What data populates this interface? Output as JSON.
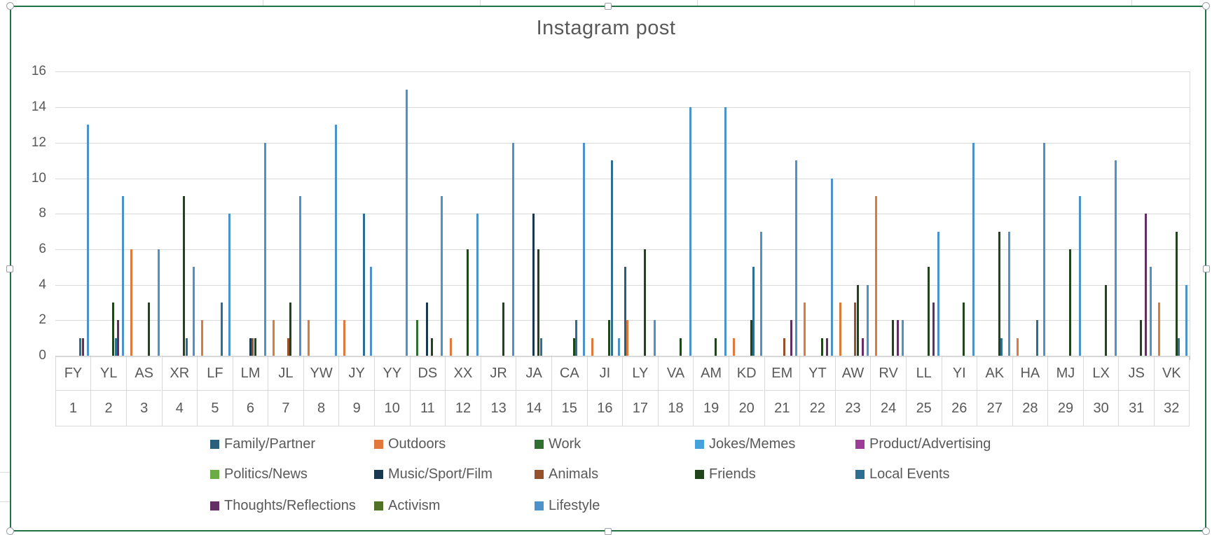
{
  "title": "Instagram post",
  "colors": {
    "frame_border": "#217346",
    "gridline": "#d9d9d9",
    "axis_text": "#595959"
  },
  "y_axis": {
    "ticks": [
      0,
      2,
      4,
      6,
      8,
      10,
      12,
      14,
      16
    ]
  },
  "x_axis": {
    "names": [
      "FY",
      "YL",
      "AS",
      "XR",
      "LF",
      "LM",
      "JL",
      "YW",
      "JY",
      "YY",
      "DS",
      "XX",
      "JR",
      "JA",
      "CA",
      "JI",
      "LY",
      "VA",
      "AM",
      "KD",
      "EM",
      "YT",
      "AW",
      "RV",
      "LL",
      "YI",
      "AK",
      "HA",
      "MJ",
      "LX",
      "JS",
      "VK"
    ],
    "numbers": [
      "1",
      "2",
      "3",
      "4",
      "5",
      "6",
      "7",
      "8",
      "9",
      "10",
      "11",
      "12",
      "13",
      "14",
      "15",
      "16",
      "17",
      "18",
      "19",
      "20",
      "21",
      "22",
      "23",
      "24",
      "25",
      "26",
      "27",
      "28",
      "29",
      "30",
      "31",
      "32"
    ]
  },
  "chart_data": {
    "type": "bar",
    "title": "Instagram post",
    "xlabel": "",
    "ylabel": "",
    "ylim": [
      0,
      16
    ],
    "grid": true,
    "legend_position": "bottom",
    "categories": [
      "FY",
      "YL",
      "AS",
      "XR",
      "LF",
      "LM",
      "JL",
      "YW",
      "JY",
      "YY",
      "DS",
      "XX",
      "JR",
      "JA",
      "CA",
      "JI",
      "LY",
      "VA",
      "AM",
      "KD",
      "EM",
      "YT",
      "AW",
      "RV",
      "LL",
      "YI",
      "AK",
      "HA",
      "MJ",
      "LX",
      "JS",
      "VK"
    ],
    "category_numbers": [
      1,
      2,
      3,
      4,
      5,
      6,
      7,
      8,
      9,
      10,
      11,
      12,
      13,
      14,
      15,
      16,
      17,
      18,
      19,
      20,
      21,
      22,
      23,
      24,
      25,
      26,
      27,
      28,
      29,
      30,
      31,
      32
    ],
    "series": [
      {
        "name": "Family/Partner",
        "color": "#2B5F7C",
        "values": [
          0,
          0,
          0,
          0,
          0,
          0,
          0,
          0,
          0,
          0,
          0,
          0,
          0,
          0,
          0,
          0,
          5,
          0,
          0,
          0,
          0,
          0,
          0,
          0,
          0,
          0,
          0,
          0,
          0,
          0,
          0,
          0
        ]
      },
      {
        "name": "Outdoors",
        "color": "#E2793C",
        "values": [
          0,
          0,
          6,
          0,
          2,
          0,
          2,
          2,
          2,
          0,
          0,
          1,
          0,
          0,
          0,
          1,
          2,
          0,
          0,
          1,
          0,
          3,
          3,
          9,
          0,
          0,
          0,
          1,
          0,
          0,
          0,
          3
        ]
      },
      {
        "name": "Work",
        "color": "#2F7030",
        "values": [
          0,
          0,
          0,
          0,
          0,
          0,
          0,
          0,
          0,
          0,
          2,
          0,
          0,
          0,
          0,
          0,
          0,
          0,
          0,
          0,
          0,
          0,
          0,
          0,
          0,
          0,
          0,
          0,
          0,
          0,
          0,
          0
        ]
      },
      {
        "name": "Jokes/Memes",
        "color": "#47A1DB",
        "values": [
          0,
          0,
          0,
          0,
          0,
          0,
          0,
          0,
          0,
          0,
          0,
          0,
          0,
          0,
          0,
          0,
          0,
          0,
          0,
          0,
          0,
          0,
          0,
          0,
          0,
          0,
          0,
          0,
          0,
          0,
          0,
          0
        ]
      },
      {
        "name": "Product/Advertising",
        "color": "#9E3D99",
        "values": [
          0,
          0,
          0,
          0,
          0,
          0,
          0,
          0,
          0,
          0,
          0,
          0,
          0,
          0,
          0,
          0,
          0,
          0,
          0,
          0,
          0,
          0,
          0,
          0,
          0,
          0,
          0,
          0,
          0,
          0,
          0,
          0
        ]
      },
      {
        "name": "Politics/News",
        "color": "#6CAC47",
        "values": [
          0,
          0,
          0,
          0,
          0,
          0,
          0,
          0,
          0,
          0,
          0,
          0,
          0,
          0,
          0,
          0,
          0,
          0,
          0,
          0,
          0,
          0,
          0,
          0,
          0,
          0,
          0,
          0,
          0,
          0,
          0,
          0
        ]
      },
      {
        "name": "Music/Sport/Film",
        "color": "#17384E",
        "values": [
          0,
          0,
          0,
          0,
          0,
          1,
          0,
          0,
          0,
          0,
          3,
          0,
          0,
          8,
          0,
          0,
          0,
          0,
          0,
          0,
          0,
          0,
          0,
          0,
          0,
          0,
          0,
          0,
          0,
          0,
          0,
          0
        ]
      },
      {
        "name": "Animals",
        "color": "#94512A",
        "values": [
          0,
          0,
          0,
          0,
          0,
          1,
          1,
          0,
          0,
          0,
          0,
          0,
          0,
          0,
          0,
          0,
          0,
          0,
          0,
          0,
          1,
          0,
          3,
          0,
          0,
          0,
          0,
          0,
          0,
          0,
          0,
          0
        ]
      },
      {
        "name": "Friends",
        "color": "#20451B",
        "values": [
          0,
          3,
          3,
          9,
          0,
          1,
          3,
          0,
          0,
          0,
          1,
          6,
          3,
          6,
          1,
          2,
          6,
          1,
          1,
          2,
          0,
          1,
          4,
          2,
          5,
          3,
          7,
          0,
          6,
          4,
          2,
          7
        ]
      },
      {
        "name": "Local Events",
        "color": "#2D6E93",
        "values": [
          1,
          1,
          0,
          1,
          3,
          0,
          0,
          0,
          8,
          0,
          0,
          0,
          0,
          1,
          2,
          11,
          0,
          0,
          0,
          5,
          0,
          0,
          0,
          0,
          0,
          0,
          1,
          2,
          0,
          0,
          0,
          1
        ]
      },
      {
        "name": "Thoughts/Reflections",
        "color": "#632E63",
        "values": [
          1,
          2,
          0,
          0,
          0,
          0,
          0,
          0,
          0,
          0,
          0,
          0,
          0,
          0,
          0,
          0,
          0,
          0,
          0,
          0,
          2,
          1,
          1,
          2,
          3,
          0,
          0,
          0,
          0,
          0,
          8,
          0
        ]
      },
      {
        "name": "Activism",
        "color": "#4F7227",
        "values": [
          0,
          0,
          0,
          0,
          0,
          0,
          0,
          0,
          0,
          0,
          0,
          0,
          0,
          0,
          0,
          0,
          0,
          0,
          0,
          0,
          0,
          0,
          0,
          0,
          0,
          0,
          0,
          0,
          0,
          0,
          0,
          0
        ]
      },
      {
        "name": "Lifestyle",
        "color": "#4C93CC",
        "values": [
          13,
          9,
          6,
          5,
          8,
          12,
          9,
          13,
          5,
          15,
          9,
          8,
          12,
          0,
          12,
          1,
          2,
          14,
          14,
          7,
          11,
          10,
          4,
          2,
          7,
          12,
          7,
          12,
          9,
          11,
          5,
          4
        ]
      }
    ]
  }
}
